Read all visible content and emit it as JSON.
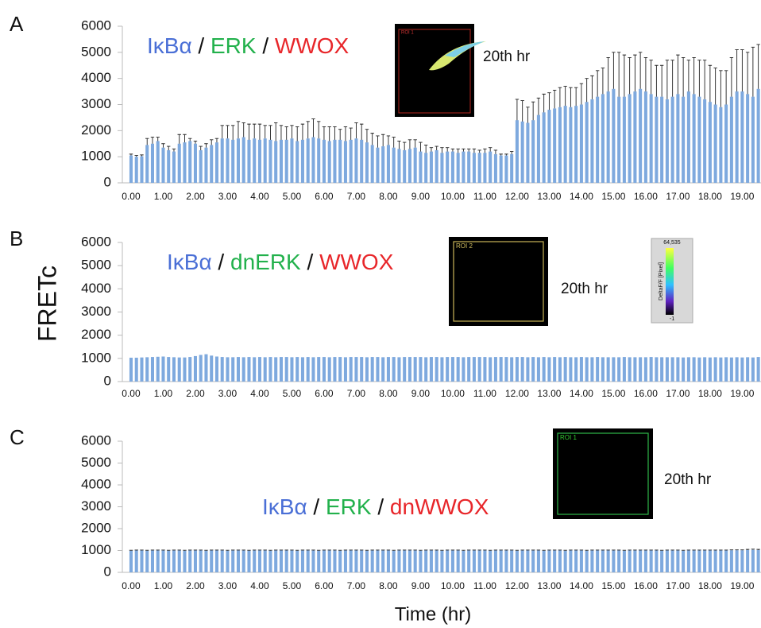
{
  "figure": {
    "y_label": "FRETc",
    "x_label": "Time (hr)"
  },
  "chart_data": [
    {
      "type": "bar",
      "panel": "A",
      "title_parts": [
        {
          "text": "IκBα",
          "color": "#4a6fd6"
        },
        {
          "text": " / ",
          "color": "#111111"
        },
        {
          "text": "ERK",
          "color": "#22b14c"
        },
        {
          "text": " / ",
          "color": "#111111"
        },
        {
          "text": "WWOX",
          "color": "#e8262a"
        }
      ],
      "annotation": "20th hr",
      "inset": {
        "roi": "ROI 1",
        "frame_color": "#b3261e"
      },
      "color": "#7ea9de",
      "ylim": [
        0,
        6000
      ],
      "yticks": [
        0,
        1000,
        2000,
        3000,
        4000,
        5000,
        6000
      ],
      "categories": [
        "0.00",
        null,
        null,
        null,
        null,
        null,
        "1.00",
        null,
        null,
        null,
        null,
        null,
        "2.00",
        null,
        null,
        null,
        null,
        null,
        "3.00",
        null,
        null,
        null,
        null,
        null,
        "4.00",
        null,
        null,
        null,
        null,
        null,
        "5.00",
        null,
        null,
        null,
        null,
        null,
        "6.00",
        null,
        null,
        null,
        null,
        null,
        "7.00",
        null,
        null,
        null,
        null,
        null,
        "8.00",
        null,
        null,
        null,
        null,
        null,
        "9.00",
        null,
        null,
        null,
        null,
        null,
        "10.00",
        null,
        null,
        null,
        null,
        null,
        "11.00",
        null,
        null,
        null,
        null,
        null,
        "12.00",
        null,
        null,
        null,
        null,
        null,
        "13.00",
        null,
        null,
        null,
        null,
        null,
        "14.00",
        null,
        null,
        null,
        null,
        null,
        "15.00",
        null,
        null,
        null,
        null,
        null,
        "16.00",
        null,
        null,
        null,
        null,
        null,
        "17.00",
        null,
        null,
        null,
        null,
        null,
        "18.00",
        null,
        null,
        null,
        null,
        null,
        "19.00",
        null,
        null,
        null
      ],
      "values": [
        1050,
        1000,
        1020,
        1450,
        1500,
        1600,
        1350,
        1250,
        1200,
        1500,
        1550,
        1600,
        1500,
        1250,
        1350,
        1450,
        1550,
        1700,
        1700,
        1650,
        1700,
        1750,
        1650,
        1700,
        1650,
        1700,
        1650,
        1600,
        1650,
        1650,
        1700,
        1600,
        1650,
        1700,
        1750,
        1700,
        1650,
        1600,
        1650,
        1650,
        1600,
        1650,
        1700,
        1650,
        1550,
        1450,
        1350,
        1400,
        1450,
        1350,
        1300,
        1250,
        1300,
        1350,
        1200,
        1150,
        1200,
        1250,
        1150,
        1200,
        1200,
        1150,
        1200,
        1200,
        1150,
        1150,
        1150,
        1200,
        1100,
        1050,
        1050,
        1100,
        2400,
        2350,
        2300,
        2400,
        2600,
        2700,
        2800,
        2850,
        2900,
        2950,
        2900,
        2950,
        3000,
        3100,
        3200,
        3300,
        3400,
        3500,
        3600,
        3300,
        3300,
        3400,
        3500,
        3600,
        3500,
        3400,
        3300,
        3300,
        3200,
        3300,
        3400,
        3300,
        3500,
        3400,
        3300,
        3200,
        3100,
        3000,
        2900,
        3000,
        3300,
        3500,
        3500,
        3400,
        3300,
        3600
      ],
      "errors": [
        50,
        50,
        50,
        250,
        250,
        150,
        150,
        150,
        100,
        350,
        300,
        100,
        100,
        150,
        150,
        200,
        150,
        500,
        500,
        550,
        650,
        550,
        600,
        550,
        600,
        500,
        550,
        700,
        550,
        500,
        500,
        550,
        600,
        650,
        700,
        650,
        500,
        550,
        500,
        400,
        550,
        450,
        600,
        600,
        500,
        450,
        450,
        450,
        350,
        400,
        300,
        300,
        350,
        300,
        350,
        300,
        150,
        150,
        200,
        150,
        100,
        150,
        100,
        100,
        150,
        100,
        150,
        150,
        150,
        50,
        50,
        100,
        800,
        800,
        600,
        700,
        650,
        700,
        650,
        700,
        750,
        750,
        750,
        700,
        800,
        900,
        900,
        1000,
        1000,
        1300,
        1400,
        1700,
        1600,
        1400,
        1400,
        1400,
        1300,
        1300,
        1200,
        1200,
        1500,
        1400,
        1500,
        1500,
        1200,
        1400,
        1400,
        1500,
        1400,
        1400,
        1400,
        1300,
        1500,
        1600,
        1600,
        1600,
        1900,
        1700
      ]
    },
    {
      "type": "bar",
      "panel": "B",
      "title_parts": [
        {
          "text": "IκBα",
          "color": "#4a6fd6"
        },
        {
          "text": " / ",
          "color": "#111111"
        },
        {
          "text": "dnERK",
          "color": "#22b14c"
        },
        {
          "text": " / ",
          "color": "#111111"
        },
        {
          "text": "WWOX",
          "color": "#e8262a"
        }
      ],
      "annotation": "20th hr",
      "inset": {
        "roi": "ROI 2",
        "frame_color": "#c9b458"
      },
      "colorbar": {
        "max": "64,535",
        "label": "DeltaF/F [Pixel]",
        "min": "-1"
      },
      "color": "#7ea9de",
      "ylim": [
        0,
        6000
      ],
      "yticks": [
        0,
        1000,
        2000,
        3000,
        4000,
        5000,
        6000
      ],
      "categories": [
        "0.00",
        null,
        null,
        null,
        null,
        null,
        "1.00",
        null,
        null,
        null,
        null,
        null,
        "2.00",
        null,
        null,
        null,
        null,
        null,
        "3.00",
        null,
        null,
        null,
        null,
        null,
        "4.00",
        null,
        null,
        null,
        null,
        null,
        "5.00",
        null,
        null,
        null,
        null,
        null,
        "6.00",
        null,
        null,
        null,
        null,
        null,
        "7.00",
        null,
        null,
        null,
        null,
        null,
        "8.00",
        null,
        null,
        null,
        null,
        null,
        "9.00",
        null,
        null,
        null,
        null,
        null,
        "10.00",
        null,
        null,
        null,
        null,
        null,
        "11.00",
        null,
        null,
        null,
        null,
        null,
        "12.00",
        null,
        null,
        null,
        null,
        null,
        "13.00",
        null,
        null,
        null,
        null,
        null,
        "14.00",
        null,
        null,
        null,
        null,
        null,
        "15.00",
        null,
        null,
        null,
        null,
        null,
        "16.00",
        null,
        null,
        null,
        null,
        null,
        "17.00",
        null,
        null,
        null,
        null,
        null,
        "18.00",
        null,
        null,
        null,
        null,
        null,
        "19.00",
        null,
        null,
        null
      ],
      "values": [
        1030,
        1030,
        1040,
        1050,
        1060,
        1070,
        1080,
        1060,
        1050,
        1040,
        1040,
        1060,
        1100,
        1150,
        1180,
        1120,
        1080,
        1060,
        1050,
        1050,
        1060,
        1050,
        1060,
        1050,
        1060,
        1050,
        1060,
        1050,
        1060,
        1060,
        1050,
        1060,
        1050,
        1060,
        1050,
        1060,
        1060,
        1050,
        1060,
        1060,
        1050,
        1060,
        1060,
        1060,
        1050,
        1060,
        1060,
        1050,
        1060,
        1060,
        1050,
        1060,
        1060,
        1060,
        1060,
        1050,
        1060,
        1060,
        1050,
        1060,
        1060,
        1060,
        1050,
        1060,
        1060,
        1060,
        1060,
        1050,
        1060,
        1060,
        1060,
        1050,
        1060,
        1060,
        1050,
        1060,
        1050,
        1060,
        1050,
        1060,
        1050,
        1060,
        1050,
        1050,
        1060,
        1050,
        1050,
        1060,
        1050,
        1050,
        1050,
        1050,
        1060,
        1050,
        1050,
        1050,
        1050,
        1060,
        1050,
        1050,
        1050,
        1050,
        1050,
        1040,
        1050,
        1050,
        1040,
        1050,
        1040,
        1050,
        1040,
        1050,
        1040,
        1050,
        1040,
        1050,
        1040,
        1060
      ]
    },
    {
      "type": "bar",
      "panel": "C",
      "title_parts": [
        {
          "text": "IκBα",
          "color": "#4a6fd6"
        },
        {
          "text": " / ",
          "color": "#111111"
        },
        {
          "text": "ERK",
          "color": "#22b14c"
        },
        {
          "text": " / ",
          "color": "#111111"
        },
        {
          "text": "dnWWOX",
          "color": "#e8262a"
        }
      ],
      "annotation": "20th hr",
      "inset": {
        "roi": "ROI 1",
        "frame_color": "#2fb84a"
      },
      "color": "#7ea9de",
      "ylim": [
        0,
        6000
      ],
      "yticks": [
        0,
        1000,
        2000,
        3000,
        4000,
        5000,
        6000
      ],
      "categories": [
        "0.00",
        null,
        null,
        null,
        null,
        null,
        "1.00",
        null,
        null,
        null,
        null,
        null,
        "2.00",
        null,
        null,
        null,
        null,
        null,
        "3.00",
        null,
        null,
        null,
        null,
        null,
        "4.00",
        null,
        null,
        null,
        null,
        null,
        "5.00",
        null,
        null,
        null,
        null,
        null,
        "6.00",
        null,
        null,
        null,
        null,
        null,
        "7.00",
        null,
        null,
        null,
        null,
        null,
        "8.00",
        null,
        null,
        null,
        null,
        null,
        "9.00",
        null,
        null,
        null,
        null,
        null,
        "10.00",
        null,
        null,
        null,
        null,
        null,
        "11.00",
        null,
        null,
        null,
        null,
        null,
        "12.00",
        null,
        null,
        null,
        null,
        null,
        "13.00",
        null,
        null,
        null,
        null,
        null,
        "14.00",
        null,
        null,
        null,
        null,
        null,
        "15.00",
        null,
        null,
        null,
        null,
        null,
        "16.00",
        null,
        null,
        null,
        null,
        null,
        "17.00",
        null,
        null,
        null,
        null,
        null,
        "18.00",
        null,
        null,
        null,
        null,
        null,
        "19.00",
        null,
        null,
        null
      ],
      "values": [
        990,
        1000,
        1000,
        990,
        1000,
        1000,
        1000,
        990,
        1000,
        1000,
        990,
        1000,
        1000,
        1000,
        990,
        1000,
        1000,
        1000,
        990,
        1000,
        1000,
        1000,
        990,
        1000,
        1000,
        1000,
        990,
        1000,
        1000,
        1000,
        1000,
        990,
        1000,
        1000,
        1000,
        990,
        1000,
        1000,
        1000,
        990,
        1000,
        1000,
        1000,
        1000,
        990,
        1000,
        1000,
        1000,
        1000,
        990,
        1000,
        1000,
        1000,
        1000,
        990,
        1000,
        1000,
        1000,
        990,
        1000,
        1000,
        1000,
        990,
        1000,
        1000,
        1000,
        1000,
        990,
        1000,
        1000,
        1000,
        1000,
        990,
        1000,
        1000,
        1000,
        1000,
        990,
        1000,
        1000,
        1000,
        990,
        1000,
        1000,
        1000,
        990,
        1000,
        1000,
        1000,
        1000,
        1000,
        1000,
        990,
        1000,
        1000,
        1000,
        1000,
        1000,
        1000,
        990,
        1000,
        1000,
        1000,
        990,
        1000,
        1000,
        1000,
        1000,
        1000,
        1000,
        1000,
        1000,
        1010,
        1010,
        1010,
        1020,
        1030,
        1020
      ],
      "errors": [
        20,
        20,
        20,
        20,
        20,
        20,
        20,
        20,
        20,
        20,
        20,
        20,
        20,
        20,
        20,
        20,
        20,
        20,
        20,
        20,
        20,
        20,
        20,
        20,
        20,
        20,
        20,
        20,
        20,
        20,
        20,
        20,
        20,
        20,
        20,
        20,
        20,
        20,
        20,
        20,
        20,
        20,
        20,
        20,
        20,
        20,
        20,
        20,
        20,
        20,
        20,
        20,
        20,
        20,
        20,
        20,
        20,
        20,
        20,
        20,
        20,
        20,
        20,
        20,
        20,
        20,
        20,
        20,
        20,
        20,
        20,
        20,
        20,
        20,
        20,
        20,
        20,
        20,
        20,
        20,
        20,
        20,
        20,
        20,
        20,
        20,
        20,
        20,
        20,
        20,
        20,
        20,
        20,
        20,
        20,
        20,
        20,
        20,
        20,
        20,
        20,
        20,
        20,
        20,
        20,
        20,
        20,
        20,
        20,
        20,
        20,
        20,
        20,
        20,
        20,
        30,
        30,
        30
      ]
    }
  ]
}
